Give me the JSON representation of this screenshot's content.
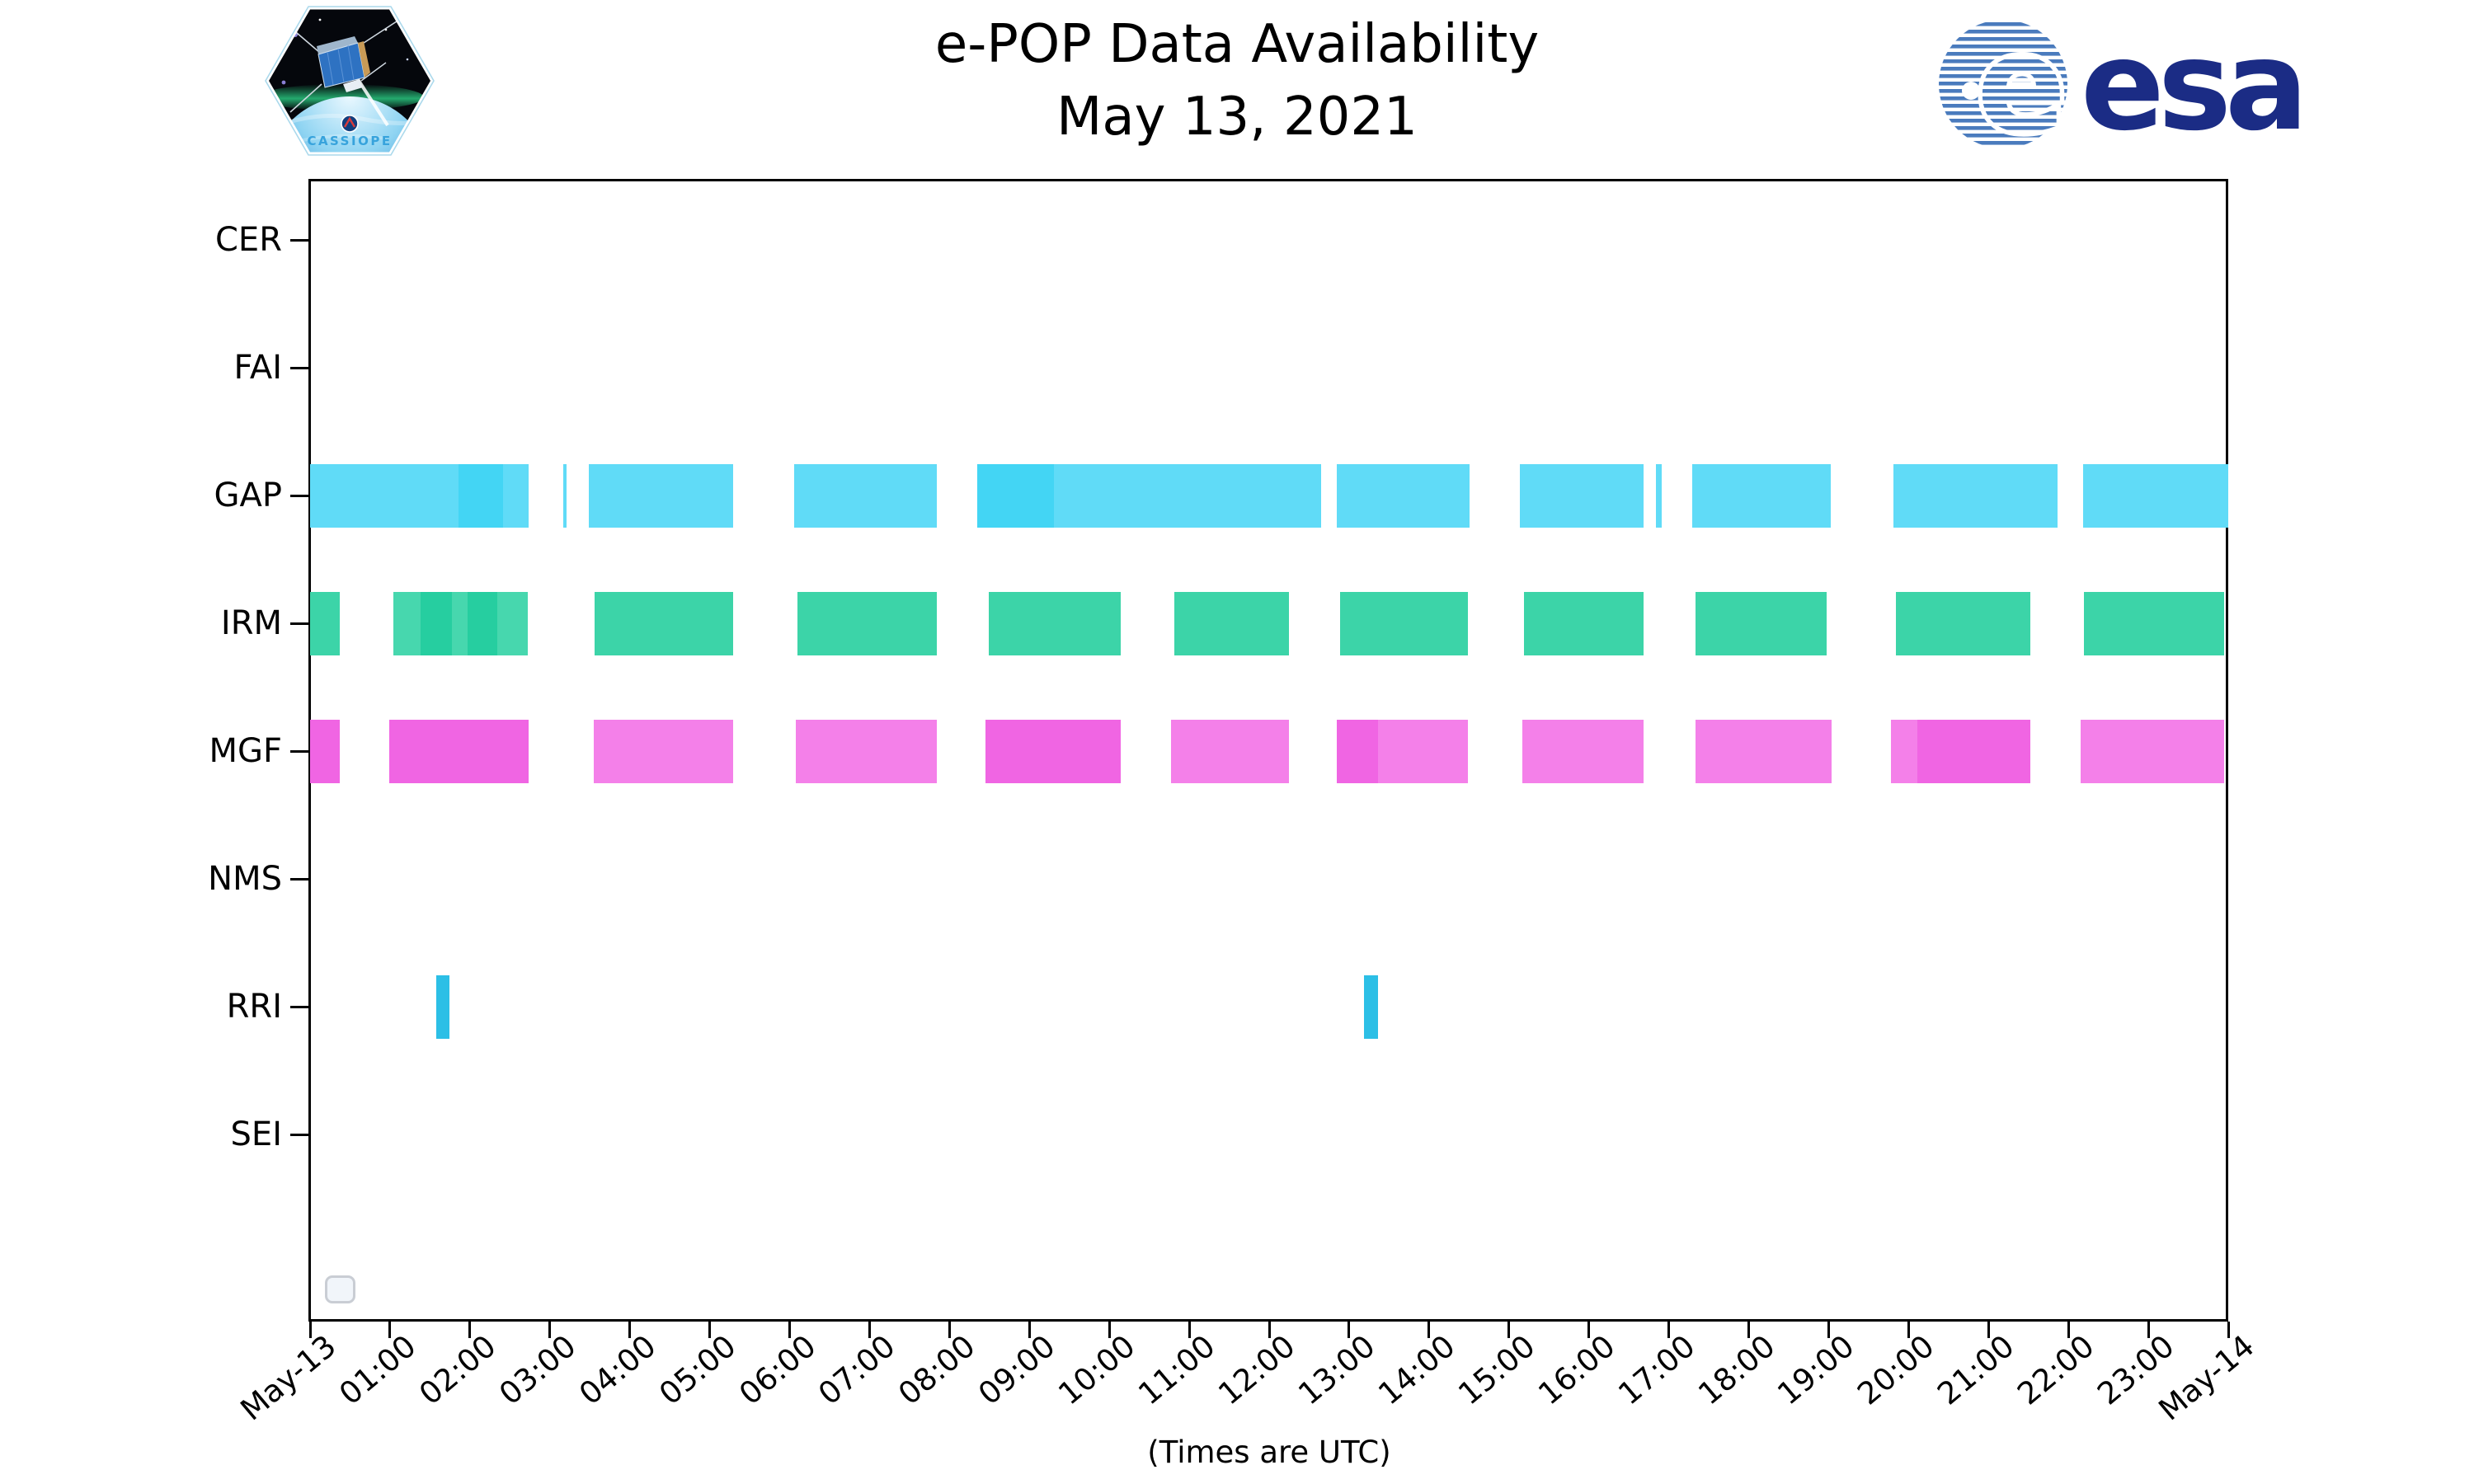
{
  "header": {
    "title_line1": "e-POP Data Availability",
    "title_line2": "May 13, 2021",
    "cassiope_badge_text": "CASSIOPE",
    "esa_wordmark": "esa"
  },
  "x_axis_note": "(Times are UTC)",
  "chart_data": {
    "type": "bar",
    "subtype": "availability-timeline-gantt",
    "title": "e-POP Data Availability",
    "subtitle": "May 13, 2021",
    "categories": [
      "CER",
      "FAI",
      "GAP",
      "IRM",
      "MGF",
      "NMS",
      "RRI",
      "SEI"
    ],
    "x_axis": {
      "start_label": "May-13",
      "end_label": "May-14",
      "range_hours": [
        0,
        24
      ],
      "tick_interval_hours": 1,
      "tick_labels": [
        "May-13",
        "01:00",
        "02:00",
        "03:00",
        "04:00",
        "05:00",
        "06:00",
        "07:00",
        "08:00",
        "09:00",
        "10:00",
        "11:00",
        "12:00",
        "13:00",
        "14:00",
        "15:00",
        "16:00",
        "17:00",
        "18:00",
        "19:00",
        "20:00",
        "21:00",
        "22:00",
        "23:00",
        "May-14"
      ],
      "note": "(Times are UTC)"
    },
    "y_axis": {
      "grid": false
    },
    "legend": {
      "position": "lower left",
      "entries": []
    },
    "colors": {
      "gap_light": "#60DBF7",
      "gap_dark": "#43D5F4",
      "irm_base": "#3CD4A8",
      "irm_light": "#47D7AE",
      "irm_dark": "#26CEA0",
      "mgf_vivid": "#F065E3",
      "mgf_pale": "#F480E9",
      "rri_cyan": "#2CBFE6"
    },
    "series": [
      {
        "name": "CER",
        "segments": []
      },
      {
        "name": "FAI",
        "segments": []
      },
      {
        "name": "GAP",
        "segments": [
          [
            0.0,
            1.86,
            "gap_light"
          ],
          [
            1.86,
            2.41,
            "gap_dark"
          ],
          [
            2.41,
            2.73,
            "gap_light"
          ],
          [
            3.17,
            3.21,
            "gap_light"
          ],
          [
            3.49,
            5.29,
            "gap_light"
          ],
          [
            6.06,
            7.84,
            "gap_light"
          ],
          [
            8.35,
            9.31,
            "gap_dark"
          ],
          [
            9.31,
            12.65,
            "gap_light"
          ],
          [
            12.85,
            14.51,
            "gap_light"
          ],
          [
            15.14,
            16.68,
            "gap_light"
          ],
          [
            16.84,
            16.91,
            "gap_light"
          ],
          [
            17.29,
            19.03,
            "gap_light"
          ],
          [
            19.81,
            21.86,
            "gap_light"
          ],
          [
            22.18,
            24.0,
            "gap_light"
          ]
        ]
      },
      {
        "name": "IRM",
        "segments": [
          [
            0.0,
            0.37,
            "irm_base"
          ],
          [
            1.04,
            1.38,
            "irm_light"
          ],
          [
            1.38,
            1.77,
            "irm_dark"
          ],
          [
            1.77,
            1.97,
            "irm_light"
          ],
          [
            1.97,
            2.34,
            "irm_dark"
          ],
          [
            2.34,
            2.72,
            "irm_light"
          ],
          [
            3.56,
            5.29,
            "irm_base"
          ],
          [
            6.1,
            7.84,
            "irm_base"
          ],
          [
            8.49,
            10.14,
            "irm_base"
          ],
          [
            10.81,
            12.25,
            "irm_base"
          ],
          [
            12.89,
            14.49,
            "irm_base"
          ],
          [
            15.19,
            16.68,
            "irm_base"
          ],
          [
            17.33,
            18.98,
            "irm_base"
          ],
          [
            19.84,
            21.52,
            "irm_base"
          ],
          [
            22.19,
            23.95,
            "irm_base"
          ]
        ]
      },
      {
        "name": "MGF",
        "segments": [
          [
            0.0,
            0.37,
            "mgf_vivid"
          ],
          [
            0.99,
            2.73,
            "mgf_vivid"
          ],
          [
            3.55,
            5.29,
            "mgf_pale"
          ],
          [
            6.08,
            7.84,
            "mgf_pale"
          ],
          [
            8.45,
            10.14,
            "mgf_vivid"
          ],
          [
            10.77,
            12.25,
            "mgf_pale"
          ],
          [
            12.85,
            13.36,
            "mgf_vivid"
          ],
          [
            13.36,
            14.49,
            "mgf_pale"
          ],
          [
            15.17,
            16.68,
            "mgf_pale"
          ],
          [
            17.33,
            19.04,
            "mgf_pale"
          ],
          [
            19.78,
            20.11,
            "mgf_pale"
          ],
          [
            20.11,
            21.52,
            "mgf_vivid"
          ],
          [
            22.15,
            23.95,
            "mgf_pale"
          ]
        ]
      },
      {
        "name": "NMS",
        "segments": []
      },
      {
        "name": "RRI",
        "segments": [
          [
            1.58,
            1.74,
            "rri_cyan"
          ],
          [
            13.19,
            13.36,
            "rri_cyan"
          ]
        ]
      },
      {
        "name": "SEI",
        "segments": []
      }
    ]
  }
}
